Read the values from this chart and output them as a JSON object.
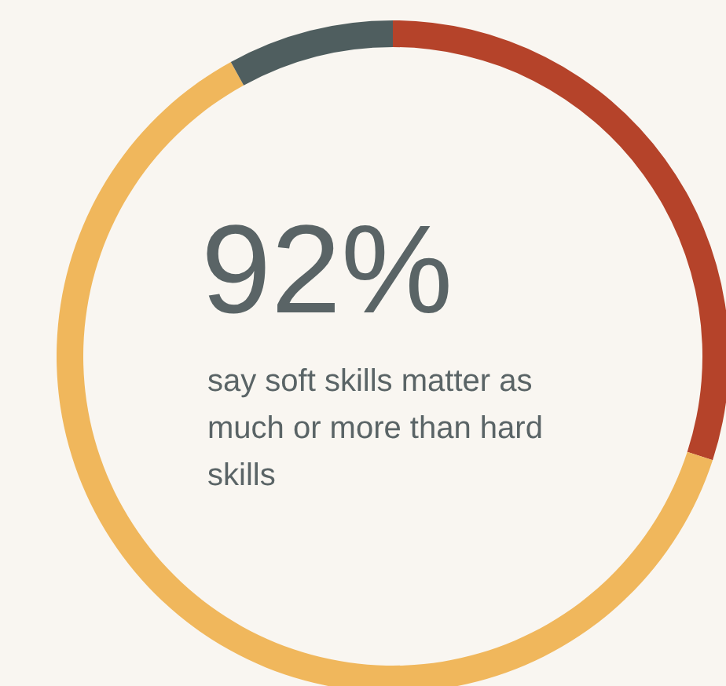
{
  "chart_data": {
    "type": "donut",
    "title": "92%",
    "annotations": [
      "say soft skills matter as much or more than hard skills"
    ],
    "categories": [
      null,
      null,
      null
    ],
    "values": [
      30,
      62,
      8
    ],
    "colors": [
      "#b5432a",
      "#f0b75c",
      "#4f5e5f"
    ]
  }
}
